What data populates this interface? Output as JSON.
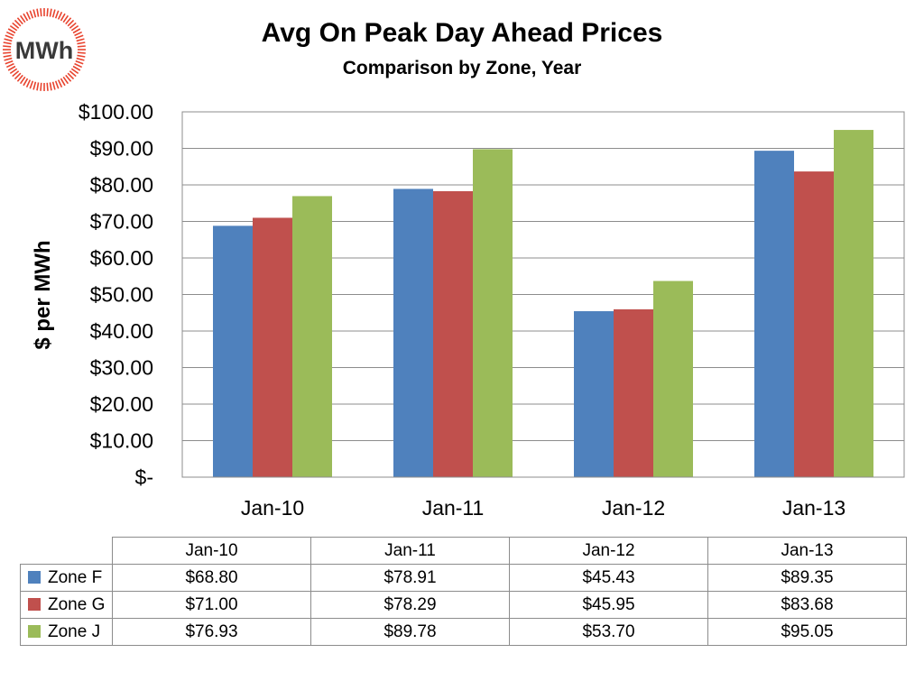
{
  "logo": {
    "text": "MWh",
    "ring_color": "#e8432e"
  },
  "chart_data": {
    "type": "bar",
    "title": "Avg On Peak Day Ahead Prices",
    "subtitle": "Comparison by Zone, Year",
    "ylabel": "$ per MWh",
    "xlabel": "",
    "categories": [
      "Jan-10",
      "Jan-11",
      "Jan-12",
      "Jan-13"
    ],
    "series": [
      {
        "name": "Zone F",
        "color": "#4f81bd",
        "values": [
          68.8,
          78.91,
          45.43,
          89.35
        ],
        "labels": [
          "$68.80",
          "$78.91",
          "$45.43",
          "$89.35"
        ]
      },
      {
        "name": "Zone G",
        "color": "#c0504d",
        "values": [
          71.0,
          78.29,
          45.95,
          83.68
        ],
        "labels": [
          "$71.00",
          "$78.29",
          "$45.95",
          "$83.68"
        ]
      },
      {
        "name": "Zone J",
        "color": "#9bbb59",
        "values": [
          76.93,
          89.78,
          53.7,
          95.05
        ],
        "labels": [
          "$76.93",
          "$89.78",
          "$53.70",
          "$95.05"
        ]
      }
    ],
    "ylim": [
      0,
      100
    ],
    "yticks": [
      0,
      10,
      20,
      30,
      40,
      50,
      60,
      70,
      80,
      90,
      100
    ],
    "ytick_labels": [
      "$-",
      "$10.00",
      "$20.00",
      "$30.00",
      "$40.00",
      "$50.00",
      "$60.00",
      "$70.00",
      "$80.00",
      "$90.00",
      "$100.00"
    ],
    "grid": true,
    "legend": "data table below chart"
  }
}
